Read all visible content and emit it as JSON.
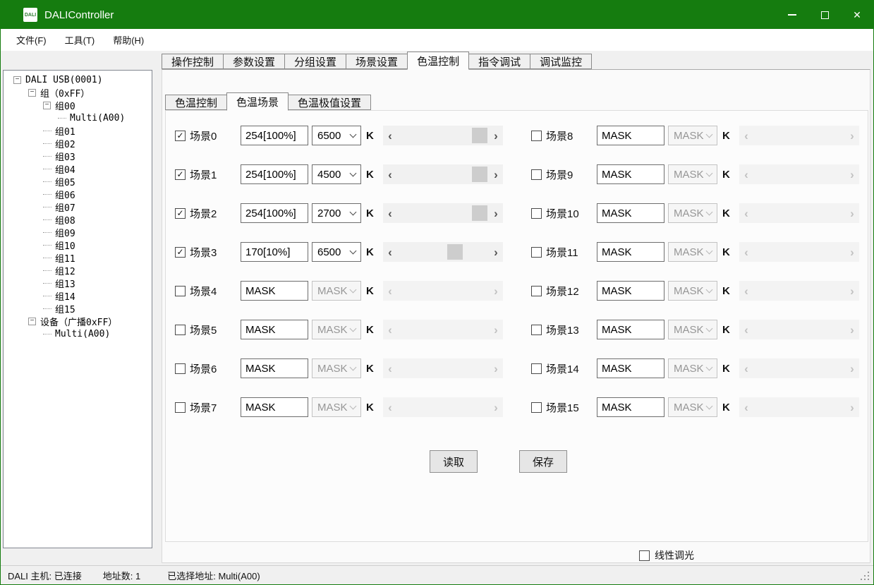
{
  "colors": {
    "titlebar_green": "#157c0f",
    "thumb_gray": "#cdcdcd"
  },
  "window": {
    "title": "DALIController",
    "icon_text": "DALI",
    "close_glyph": "✕"
  },
  "menu": {
    "items": [
      "文件(F)",
      "工具(T)",
      "帮助(H)"
    ]
  },
  "tree": {
    "items": [
      {
        "label": "DALI USB(0001)",
        "depth": 0,
        "expander": true
      },
      {
        "label": "组（0xFF）",
        "depth": 1,
        "expander": true
      },
      {
        "label": "组00",
        "depth": 2,
        "expander": true
      },
      {
        "label": "Multi(A00)",
        "depth": 3,
        "expander": false
      },
      {
        "label": "组01",
        "depth": 2,
        "expander": false
      },
      {
        "label": "组02",
        "depth": 2,
        "expander": false
      },
      {
        "label": "组03",
        "depth": 2,
        "expander": false
      },
      {
        "label": "组04",
        "depth": 2,
        "expander": false
      },
      {
        "label": "组05",
        "depth": 2,
        "expander": false
      },
      {
        "label": "组06",
        "depth": 2,
        "expander": false
      },
      {
        "label": "组07",
        "depth": 2,
        "expander": false
      },
      {
        "label": "组08",
        "depth": 2,
        "expander": false
      },
      {
        "label": "组09",
        "depth": 2,
        "expander": false
      },
      {
        "label": "组10",
        "depth": 2,
        "expander": false
      },
      {
        "label": "组11",
        "depth": 2,
        "expander": false
      },
      {
        "label": "组12",
        "depth": 2,
        "expander": false
      },
      {
        "label": "组13",
        "depth": 2,
        "expander": false
      },
      {
        "label": "组14",
        "depth": 2,
        "expander": false
      },
      {
        "label": "组15",
        "depth": 2,
        "expander": false
      },
      {
        "label": "设备（广播0xFF）",
        "depth": 1,
        "expander": true
      },
      {
        "label": "Multi(A00)",
        "depth": 2,
        "expander": false
      }
    ]
  },
  "main_tabs": {
    "items": [
      "操作控制",
      "参数设置",
      "分组设置",
      "场景设置",
      "色温控制",
      "指令调试",
      "调试监控"
    ],
    "active_index": 4
  },
  "sub_tabs": {
    "items": [
      "色温控制",
      "色温场景",
      "色温极值设置"
    ],
    "active_index": 1
  },
  "scene_panel": {
    "k_unit": "K",
    "scenes": [
      {
        "label": "场景0",
        "checked": true,
        "level": "254[100%]",
        "cct": "6500",
        "enabled": true,
        "thumb": 98
      },
      {
        "label": "场景1",
        "checked": true,
        "level": "254[100%]",
        "cct": "4500",
        "enabled": true,
        "thumb": 98
      },
      {
        "label": "场景2",
        "checked": true,
        "level": "254[100%]",
        "cct": "2700",
        "enabled": true,
        "thumb": 98
      },
      {
        "label": "场景3",
        "checked": true,
        "level": "170[10%]",
        "cct": "6500",
        "enabled": true,
        "thumb": 66
      },
      {
        "label": "场景4",
        "checked": false,
        "level": "MASK",
        "cct": "MASK",
        "enabled": false,
        "thumb": null
      },
      {
        "label": "场景5",
        "checked": false,
        "level": "MASK",
        "cct": "MASK",
        "enabled": false,
        "thumb": null
      },
      {
        "label": "场景6",
        "checked": false,
        "level": "MASK",
        "cct": "MASK",
        "enabled": false,
        "thumb": null
      },
      {
        "label": "场景7",
        "checked": false,
        "level": "MASK",
        "cct": "MASK",
        "enabled": false,
        "thumb": null
      },
      {
        "label": "场景8",
        "checked": false,
        "level": "MASK",
        "cct": "MASK",
        "enabled": false,
        "thumb": null
      },
      {
        "label": "场景9",
        "checked": false,
        "level": "MASK",
        "cct": "MASK",
        "enabled": false,
        "thumb": null
      },
      {
        "label": "场景10",
        "checked": false,
        "level": "MASK",
        "cct": "MASK",
        "enabled": false,
        "thumb": null
      },
      {
        "label": "场景11",
        "checked": false,
        "level": "MASK",
        "cct": "MASK",
        "enabled": false,
        "thumb": null
      },
      {
        "label": "场景12",
        "checked": false,
        "level": "MASK",
        "cct": "MASK",
        "enabled": false,
        "thumb": null
      },
      {
        "label": "场景13",
        "checked": false,
        "level": "MASK",
        "cct": "MASK",
        "enabled": false,
        "thumb": null
      },
      {
        "label": "场景14",
        "checked": false,
        "level": "MASK",
        "cct": "MASK",
        "enabled": false,
        "thumb": null
      },
      {
        "label": "场景15",
        "checked": false,
        "level": "MASK",
        "cct": "MASK",
        "enabled": false,
        "thumb": null
      }
    ],
    "read_button": "读取",
    "save_button": "保存",
    "linear_dimming_label": "线性调光"
  },
  "status_bar": {
    "host": "DALI 主机: 已连接",
    "address_count": "地址数: 1",
    "selected_address": "已选择地址: Multi(A00)"
  }
}
